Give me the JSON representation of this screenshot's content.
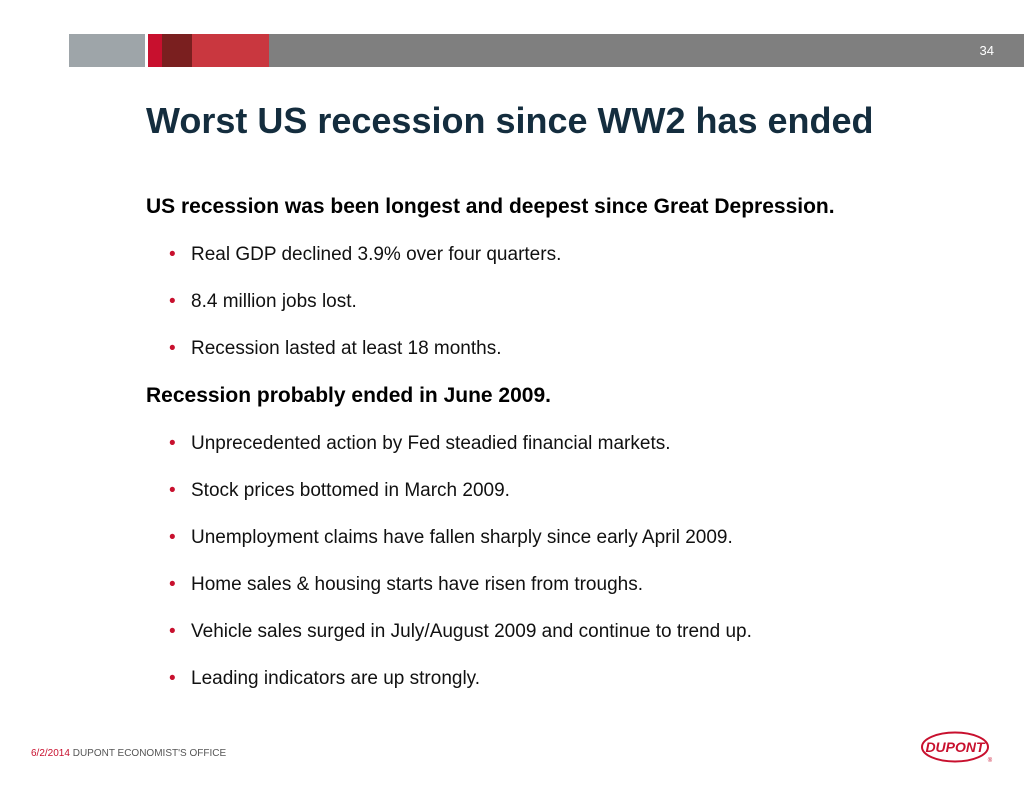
{
  "slide": {
    "page_number": "34",
    "title": "Worst US recession since WW2 has ended"
  },
  "sections": [
    {
      "heading": "US recession was been longest and deepest since Great Depression.",
      "bullets": [
        "Real GDP declined 3.9% over four quarters.",
        "8.4 million jobs lost.",
        "Recession lasted at least 18 months."
      ]
    },
    {
      "heading": "Recession probably ended in June 2009.",
      "bullets": [
        "Unprecedented action by Fed steadied financial markets.",
        "Stock prices bottomed in March 2009.",
        "Unemployment claims have fallen sharply since early April 2009.",
        "Home sales & housing starts have risen from troughs.",
        "Vehicle sales surged in July/August 2009 and continue to trend up.",
        "Leading indicators are up strongly."
      ]
    }
  ],
  "bullet_glyph": "•",
  "footer": {
    "date": "6/2/2014",
    "office": " DUPONT ECONOMIST'S OFFICE"
  },
  "logo": {
    "text": "DUPONT",
    "registered_mark": "®"
  },
  "colors": {
    "title": "#142d3e",
    "accent_red": "#c8102e",
    "bar_gray": "#7f7f7f"
  }
}
